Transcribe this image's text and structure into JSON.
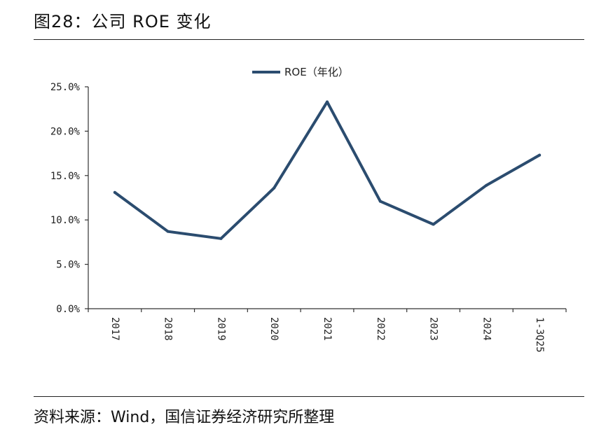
{
  "figure": {
    "title": "图28：公司 ROE 变化",
    "source": "资料来源：Wind，国信证券经济研究所整理"
  },
  "chart_data": {
    "type": "line",
    "title": "",
    "xlabel": "",
    "ylabel": "",
    "categories": [
      "2017",
      "2018",
      "2019",
      "2020",
      "2021",
      "2022",
      "2023",
      "2024",
      "1-3Q25"
    ],
    "series": [
      {
        "name": "ROE（年化）",
        "values": [
          13.1,
          8.7,
          7.9,
          13.6,
          23.3,
          12.1,
          9.5,
          13.9,
          17.3
        ],
        "unit": "%"
      }
    ],
    "ylim": [
      0,
      25
    ],
    "yticks": [
      0,
      5,
      10,
      15,
      20,
      25
    ],
    "ytick_labels": [
      "0.0%",
      "5.0%",
      "10.0%",
      "15.0%",
      "20.0%",
      "25.0%"
    ],
    "xtick_rotation": "vertical",
    "grid": false,
    "legend_position": "top-center",
    "colors": {
      "line": "#2b4c6f",
      "axis": "#333333"
    }
  }
}
